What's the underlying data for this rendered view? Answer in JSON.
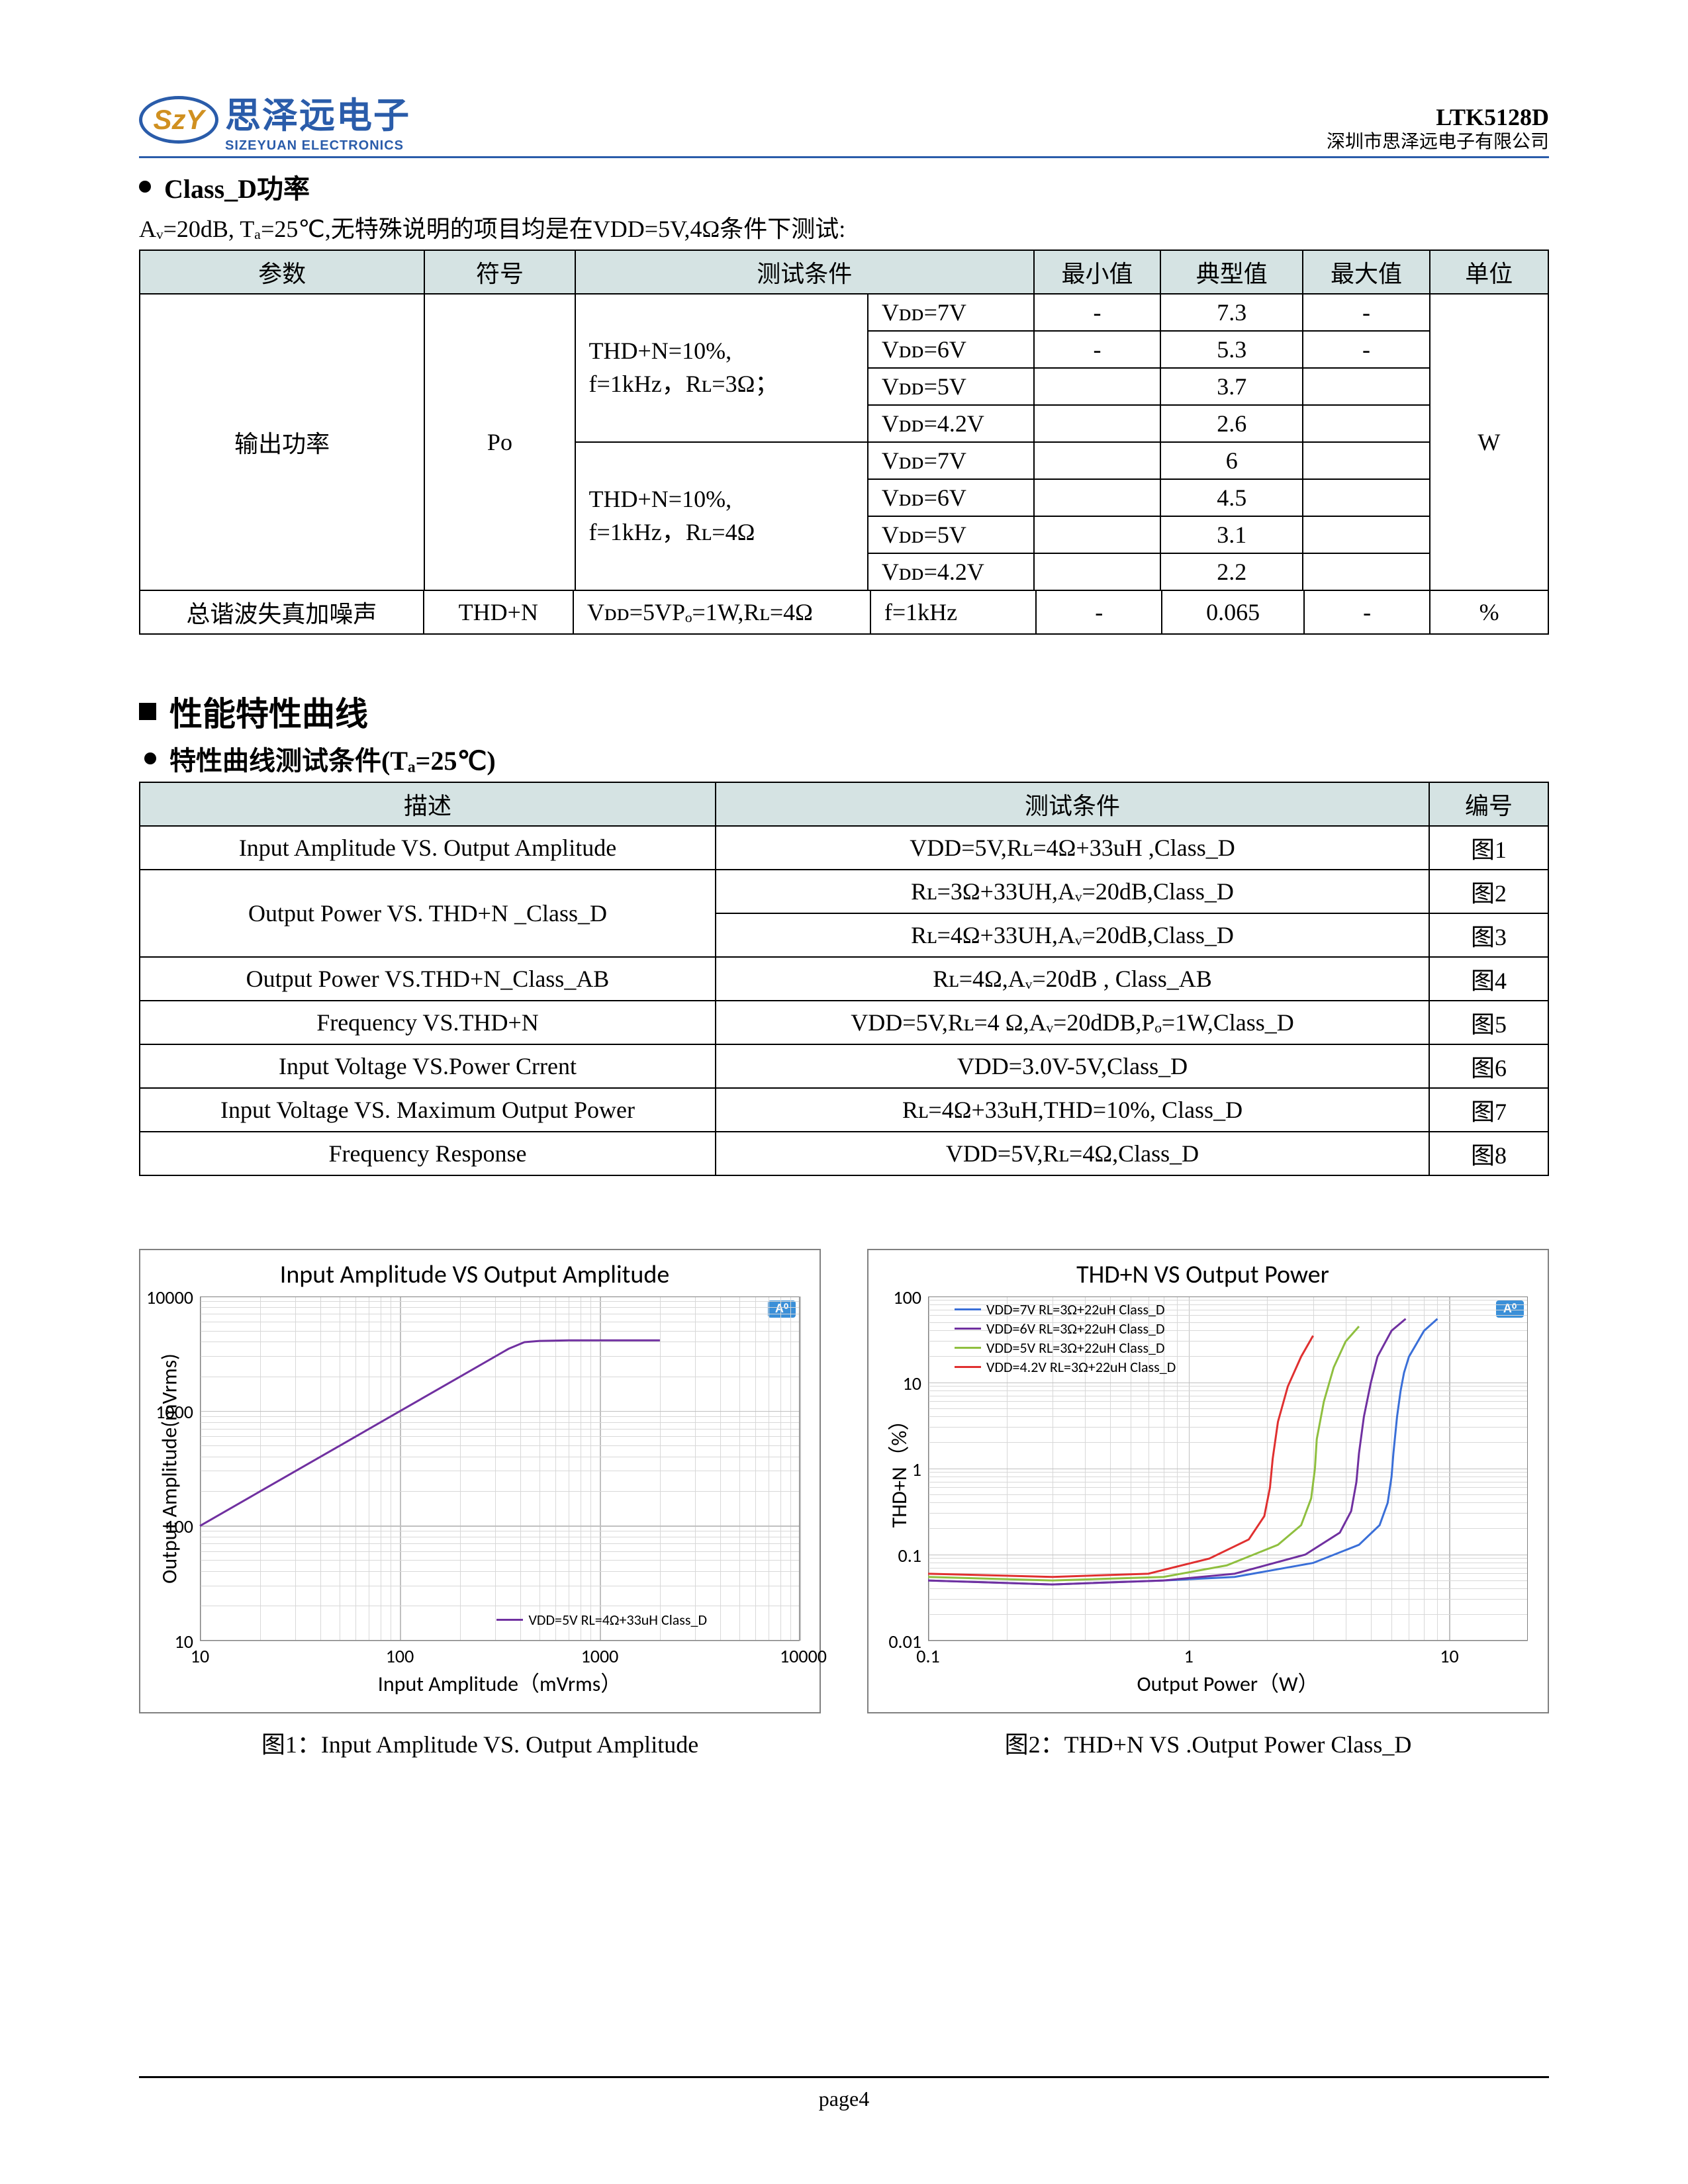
{
  "header": {
    "logo_abbr": "SzY",
    "logo_cn": "思泽远电子",
    "logo_en": "SIZEYUAN ELECTRONICS",
    "part": "LTK5128D",
    "company": "深圳市思泽远电子有限公司"
  },
  "section1": {
    "title": "Class_D功率",
    "cond": "Aᵥ=20dB, Tₐ=25℃,无特殊说明的项目均是在VDD=5V,4Ω条件下测试:"
  },
  "table1": {
    "headers": [
      "参数",
      "符号",
      "测试条件",
      "最小值",
      "典型值",
      "最大值",
      "单位"
    ],
    "output_power_label": "输出功率",
    "po_symbol": "Po",
    "cond3ohm": "THD+N=10%,\nf=1kHz，Rʟ=3Ω；",
    "cond4ohm": "THD+N=10%,\nf=1kHz，Rʟ=4Ω",
    "vdd7": "Vᴅᴅ=7V",
    "vdd6": "Vᴅᴅ=6V",
    "vdd5": "Vᴅᴅ=5V",
    "vdd42": "Vᴅᴅ=4.2V",
    "vals3": [
      "7.3",
      "5.3",
      "3.7",
      "2.6"
    ],
    "max3": [
      "-",
      "-",
      "",
      ""
    ],
    "vals4": [
      "6",
      "4.5",
      "3.1",
      "2.2"
    ],
    "unit_w": "W",
    "thd_row": {
      "param": "总谐波失真加噪声",
      "symbol": "THD+N",
      "cond1": "Vᴅᴅ=5VPₒ=1W,Rʟ=4Ω",
      "cond2": "f=1kHz",
      "min": "-",
      "typ": "0.065",
      "max": "-",
      "unit": "%"
    }
  },
  "section2": {
    "big_title": "性能特性曲线",
    "sub_title": "特性曲线测试条件(Tₐ=25℃)"
  },
  "table2": {
    "headers": [
      "描述",
      "测试条件",
      "编号"
    ],
    "rows": [
      {
        "desc": "Input Amplitude VS. Output Amplitude",
        "cond": "VDD=5V,Rʟ=4Ω+33uH ,Class_D",
        "id": "图1",
        "span": 1
      },
      {
        "desc": "Output Power VS. THD+N _Class_D",
        "cond": "Rʟ=3Ω+33UH,Aᵥ=20dB,Class_D",
        "id": "图2",
        "span": 2
      },
      {
        "desc": "",
        "cond": "Rʟ=4Ω+33UH,Aᵥ=20dB,Class_D",
        "id": "图3",
        "span": 0
      },
      {
        "desc": "Output Power VS.THD+N_Class_AB",
        "cond": "Rʟ=4Ω,Aᵥ=20dB , Class_AB",
        "id": "图4",
        "span": 1
      },
      {
        "desc": "Frequency VS.THD+N",
        "cond": "VDD=5V,Rʟ=4 Ω,Aᵥ=20dDB,Pₒ=1W,Class_D",
        "id": "图5",
        "span": 1
      },
      {
        "desc": "Input Voltage VS.Power Crrent",
        "cond": "VDD=3.0V-5V,Class_D",
        "id": "图6",
        "span": 1
      },
      {
        "desc": "Input Voltage VS. Maximum Output Power",
        "cond": "Rʟ=4Ω+33uH,THD=10%, Class_D",
        "id": "图7",
        "span": 1
      },
      {
        "desc": "Frequency Response",
        "cond": "VDD=5V,Rʟ=4Ω,Class_D",
        "id": "图8",
        "span": 1
      }
    ]
  },
  "chart1": {
    "title": "Input Amplitude VS Output Amplitude",
    "type": "line",
    "x_log": true,
    "y_log": true,
    "xlabel": "Input  Amplitude（mVrms）",
    "ylabel": "Output Amplitude(mVrms)",
    "xticks": [
      10,
      100,
      1000,
      10000
    ],
    "yticks": [
      10,
      100,
      1000,
      10000
    ],
    "xlim": [
      10,
      10000
    ],
    "ylim": [
      10,
      10000
    ],
    "legend": {
      "text": "VDD=5V RL=4Ω+33uH Class_D",
      "color": "#7030a0",
      "pos": "bottom-right"
    },
    "series": [
      {
        "color": "#7030a0",
        "width": 3,
        "points": [
          [
            10,
            100
          ],
          [
            20,
            200
          ],
          [
            50,
            500
          ],
          [
            100,
            1000
          ],
          [
            200,
            2000
          ],
          [
            350,
            3500
          ],
          [
            420,
            4000
          ],
          [
            500,
            4100
          ],
          [
            700,
            4150
          ],
          [
            1000,
            4150
          ],
          [
            2000,
            4150
          ]
        ]
      }
    ],
    "caption": "图1：Input Amplitude VS. Output Amplitude",
    "grid_color": "#c0c0c0",
    "bg": "#ffffff"
  },
  "chart2": {
    "title": "THD+N VS Output Power",
    "type": "line",
    "x_log": true,
    "y_log": true,
    "xlabel": "Output Power（W）",
    "ylabel": "THD+N（%）",
    "xticks": [
      0.1,
      1,
      10
    ],
    "yticks": [
      0.01,
      0.1,
      1,
      10,
      100
    ],
    "xlim": [
      0.1,
      20
    ],
    "ylim": [
      0.01,
      100
    ],
    "legend": {
      "pos": "top-left",
      "items": [
        {
          "text": "VDD=7V   RL=3Ω+22uH Class_D",
          "color": "#3a6fd8"
        },
        {
          "text": "VDD=6V   RL=3Ω+22uH Class_D",
          "color": "#7030a0"
        },
        {
          "text": "VDD=5V   RL=3Ω+22uH Class_D",
          "color": "#8fbf3f"
        },
        {
          "text": "VDD=4.2V RL=3Ω+22uH Class_D",
          "color": "#e03030"
        }
      ]
    },
    "series": [
      {
        "color": "#3a6fd8",
        "width": 3,
        "points": [
          [
            0.1,
            0.05
          ],
          [
            0.3,
            0.045
          ],
          [
            0.8,
            0.05
          ],
          [
            1.5,
            0.055
          ],
          [
            3,
            0.08
          ],
          [
            4.5,
            0.13
          ],
          [
            5.4,
            0.22
          ],
          [
            5.8,
            0.4
          ],
          [
            6.0,
            0.8
          ],
          [
            6.1,
            1.5
          ],
          [
            6.3,
            4
          ],
          [
            6.5,
            8
          ],
          [
            6.7,
            13
          ],
          [
            7,
            20
          ],
          [
            8,
            40
          ],
          [
            9,
            55
          ]
        ]
      },
      {
        "color": "#7030a0",
        "width": 3,
        "points": [
          [
            0.1,
            0.05
          ],
          [
            0.3,
            0.045
          ],
          [
            0.8,
            0.05
          ],
          [
            1.5,
            0.06
          ],
          [
            2.8,
            0.1
          ],
          [
            3.8,
            0.18
          ],
          [
            4.2,
            0.32
          ],
          [
            4.4,
            0.7
          ],
          [
            4.5,
            1.5
          ],
          [
            4.7,
            4
          ],
          [
            5,
            10
          ],
          [
            5.3,
            20
          ],
          [
            6,
            40
          ],
          [
            6.8,
            55
          ]
        ]
      },
      {
        "color": "#8fbf3f",
        "width": 3,
        "points": [
          [
            0.1,
            0.055
          ],
          [
            0.3,
            0.05
          ],
          [
            0.8,
            0.055
          ],
          [
            1.4,
            0.075
          ],
          [
            2.2,
            0.13
          ],
          [
            2.7,
            0.22
          ],
          [
            2.95,
            0.45
          ],
          [
            3.05,
            1
          ],
          [
            3.1,
            2.2
          ],
          [
            3.3,
            6
          ],
          [
            3.6,
            15
          ],
          [
            4,
            30
          ],
          [
            4.5,
            45
          ]
        ]
      },
      {
        "color": "#e03030",
        "width": 3,
        "points": [
          [
            0.1,
            0.06
          ],
          [
            0.3,
            0.055
          ],
          [
            0.7,
            0.06
          ],
          [
            1.2,
            0.09
          ],
          [
            1.7,
            0.15
          ],
          [
            1.95,
            0.28
          ],
          [
            2.05,
            0.6
          ],
          [
            2.1,
            1.3
          ],
          [
            2.2,
            3.5
          ],
          [
            2.4,
            9
          ],
          [
            2.7,
            20
          ],
          [
            3,
            35
          ]
        ]
      }
    ],
    "caption": "图2：THD+N VS .Output Power Class_D",
    "grid_color": "#c0c0c0",
    "bg": "#ffffff"
  },
  "footer": {
    "page": "page4"
  }
}
